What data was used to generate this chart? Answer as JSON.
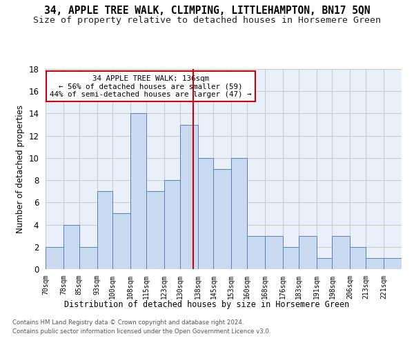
{
  "title": "34, APPLE TREE WALK, CLIMPING, LITTLEHAMPTON, BN17 5QN",
  "subtitle": "Size of property relative to detached houses in Horsemere Green",
  "xlabel": "Distribution of detached houses by size in Horsemere Green",
  "ylabel": "Number of detached properties",
  "footer1": "Contains HM Land Registry data © Crown copyright and database right 2024.",
  "footer2": "Contains public sector information licensed under the Open Government Licence v3.0.",
  "annotation_line1": "34 APPLE TREE WALK: 136sqm",
  "annotation_line2": "← 56% of detached houses are smaller (59)",
  "annotation_line3": "44% of semi-detached houses are larger (47) →",
  "bar_color": "#c9d9ef",
  "bar_edge_color": "#5a7fb5",
  "vline_color": "#cc0000",
  "vline_x": 136,
  "annotation_box_edge": "#cc0000",
  "bins": [
    70,
    78,
    85,
    93,
    100,
    108,
    115,
    123,
    130,
    138,
    145,
    153,
    160,
    168,
    176,
    183,
    191,
    198,
    206,
    213,
    221,
    229
  ],
  "counts": [
    2,
    4,
    2,
    7,
    5,
    14,
    7,
    8,
    13,
    10,
    9,
    10,
    3,
    3,
    2,
    3,
    1,
    3,
    2,
    1,
    1
  ],
  "ylim": [
    0,
    18
  ],
  "yticks": [
    0,
    2,
    4,
    6,
    8,
    10,
    12,
    14,
    16,
    18
  ],
  "grid_color": "#cccccc",
  "bg_color": "#eaf0fb",
  "title_fontsize": 10.5,
  "subtitle_fontsize": 9.5
}
